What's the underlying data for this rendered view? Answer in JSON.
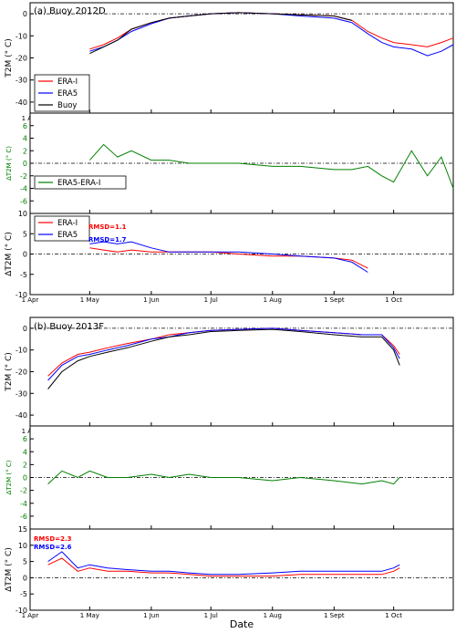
{
  "x_axis": {
    "xlabel": "Date",
    "tick_labels": [
      "1 Apr",
      "1 May",
      "1 Jun",
      "1 Jul",
      "1 Aug",
      "1 Sept",
      "1 Oct"
    ],
    "tick_dates": [
      "2012-04-01",
      "2012-05-01",
      "2012-06-01",
      "2012-07-01",
      "2012-08-01",
      "2012-09-01",
      "2012-10-01"
    ],
    "xlim": [
      "2012-04-01",
      "2012-10-31"
    ]
  },
  "colors": {
    "era_i": "#ff0000",
    "era5": "#0000ff",
    "buoy": "#000000",
    "diff": "#008000",
    "diff_axis_text": "#008000"
  },
  "chart_data": [
    {
      "id": "a1",
      "type": "line",
      "panel_label": "(a) Buoy 2012D",
      "ylabel": "T2M (° C)",
      "ylim": [
        -45,
        5
      ],
      "yticks": [
        0,
        -10,
        -20,
        -30,
        -40
      ],
      "reference_line": 0,
      "legend": {
        "placement": "lower-left",
        "entries": [
          "ERA-I",
          "ERA5",
          "Buoy"
        ]
      },
      "x": [
        "2012-05-01",
        "2012-05-08",
        "2012-05-15",
        "2012-05-22",
        "2012-06-01",
        "2012-06-10",
        "2012-06-20",
        "2012-07-01",
        "2012-07-15",
        "2012-08-01",
        "2012-08-15",
        "2012-09-01",
        "2012-09-10",
        "2012-09-18",
        "2012-09-25",
        "2012-10-01",
        "2012-10-10",
        "2012-10-18",
        "2012-10-25",
        "2012-10-31"
      ],
      "series": [
        {
          "name": "ERA-I",
          "values": [
            -16,
            -14,
            -11,
            -7,
            -4,
            -2,
            -1,
            0,
            0.5,
            0,
            -0.5,
            -1,
            -3,
            -8,
            -11,
            -13,
            -14,
            -15,
            -13,
            -11
          ]
        },
        {
          "name": "ERA5",
          "values": [
            -17,
            -15,
            -12,
            -8,
            -4.5,
            -2,
            -1,
            0,
            0.5,
            0,
            -1,
            -2,
            -4,
            -9,
            -13,
            -15,
            -16,
            -19,
            -17,
            -14
          ]
        },
        {
          "name": "Buoy",
          "values": [
            -18,
            -15,
            -12,
            -7,
            -4,
            -2,
            -1,
            0,
            0.5,
            0,
            -0.5,
            -1,
            -3,
            null,
            null,
            null,
            null,
            null,
            null,
            null
          ]
        }
      ]
    },
    {
      "id": "a2",
      "type": "line",
      "ylabel": "ΔT2M (° C)",
      "ylim": [
        -8,
        8
      ],
      "yticks": [
        6,
        4,
        2,
        0,
        -2,
        -4,
        -6
      ],
      "reference_line": 0,
      "legend": {
        "placement": "lower-left",
        "entries": [
          "ERA5-ERA-I"
        ]
      },
      "x": [
        "2012-05-01",
        "2012-05-08",
        "2012-05-15",
        "2012-05-22",
        "2012-06-01",
        "2012-06-10",
        "2012-06-20",
        "2012-07-01",
        "2012-07-15",
        "2012-08-01",
        "2012-08-15",
        "2012-09-01",
        "2012-09-10",
        "2012-09-18",
        "2012-09-25",
        "2012-10-01",
        "2012-10-10",
        "2012-10-18",
        "2012-10-25",
        "2012-10-31"
      ],
      "series": [
        {
          "name": "ERA5-ERA-I",
          "values": [
            0.5,
            3,
            1,
            2,
            0.5,
            0.5,
            0,
            0,
            0,
            -0.5,
            -0.5,
            -1,
            -1,
            -0.5,
            -2,
            -3,
            2,
            -2,
            1,
            -4
          ]
        }
      ]
    },
    {
      "id": "a3",
      "type": "line",
      "ylabel": "ΔT2M (° C)",
      "ylim": [
        -10,
        10
      ],
      "yticks": [
        10,
        5,
        0,
        -5,
        -10
      ],
      "reference_line": 0,
      "legend": {
        "placement": "top-left",
        "entries": [
          "ERA-I",
          "ERA5"
        ]
      },
      "annotations": [
        {
          "text": "RMSD=1.1",
          "color": "#ff0000"
        },
        {
          "text": "RMSD=1.7",
          "color": "#0000ff"
        }
      ],
      "x": [
        "2012-05-01",
        "2012-05-08",
        "2012-05-15",
        "2012-05-22",
        "2012-06-01",
        "2012-06-10",
        "2012-06-20",
        "2012-07-01",
        "2012-07-15",
        "2012-08-01",
        "2012-08-15",
        "2012-09-01",
        "2012-09-10",
        "2012-09-18"
      ],
      "series": [
        {
          "name": "ERA-I",
          "values": [
            1.5,
            1,
            0.5,
            1,
            0.5,
            0.5,
            0.5,
            0.5,
            0,
            -0.5,
            -0.5,
            -1,
            -1.5,
            -3.5
          ]
        },
        {
          "name": "ERA5",
          "values": [
            2.5,
            3,
            2.5,
            3,
            1.5,
            0.5,
            0.5,
            0.5,
            0.5,
            0,
            -0.5,
            -1,
            -2,
            -4.5
          ]
        }
      ]
    },
    {
      "id": "b1",
      "type": "line",
      "panel_label": "(b) Buoy 2013F",
      "ylabel": "T2M (° C)",
      "ylim": [
        -45,
        5
      ],
      "yticks": [
        0,
        -10,
        -20,
        -30,
        -40
      ],
      "reference_line": 0,
      "x": [
        "2012-04-10",
        "2012-04-17",
        "2012-04-25",
        "2012-05-01",
        "2012-05-10",
        "2012-05-20",
        "2012-06-01",
        "2012-06-10",
        "2012-06-20",
        "2012-07-01",
        "2012-07-15",
        "2012-08-01",
        "2012-08-15",
        "2012-09-01",
        "2012-09-15",
        "2012-09-25",
        "2012-10-01",
        "2012-10-04"
      ],
      "series": [
        {
          "name": "ERA-I",
          "values": [
            -22,
            -16,
            -12,
            -11,
            -9,
            -7,
            -5,
            -3,
            -2,
            -1,
            -0.5,
            0,
            -1,
            -2,
            -3,
            -3,
            -8,
            -12
          ]
        },
        {
          "name": "ERA5",
          "values": [
            -24,
            -17,
            -13,
            -12,
            -10,
            -8,
            -5,
            -4,
            -2,
            -1,
            -0.5,
            0,
            -1,
            -2,
            -3,
            -3,
            -9,
            -14
          ]
        },
        {
          "name": "Buoy",
          "values": [
            -28,
            -20,
            -15,
            -13,
            -11,
            -9,
            -6,
            -4,
            -3,
            -1.5,
            -1,
            -0.5,
            -1.5,
            -3,
            -4,
            -4,
            -10,
            -17
          ]
        }
      ]
    },
    {
      "id": "b2",
      "type": "line",
      "ylabel": "ΔT2M (° C)",
      "ylim": [
        -8,
        8
      ],
      "yticks": [
        6,
        4,
        2,
        0,
        -2,
        -4,
        -6
      ],
      "reference_line": 0,
      "x": [
        "2012-04-10",
        "2012-04-17",
        "2012-04-25",
        "2012-05-01",
        "2012-05-10",
        "2012-05-20",
        "2012-06-01",
        "2012-06-10",
        "2012-06-20",
        "2012-07-01",
        "2012-07-15",
        "2012-08-01",
        "2012-08-15",
        "2012-09-01",
        "2012-09-15",
        "2012-09-25",
        "2012-10-01",
        "2012-10-04"
      ],
      "series": [
        {
          "name": "ERA5-ERA-I",
          "values": [
            -1,
            1,
            0,
            1,
            0,
            0,
            0.5,
            0,
            0.5,
            0,
            0,
            -0.5,
            0,
            -0.5,
            -1,
            -0.5,
            -1,
            0
          ]
        }
      ]
    },
    {
      "id": "b3",
      "type": "line",
      "ylabel": "ΔT2M (° C)",
      "ylim": [
        -10,
        15
      ],
      "yticks": [
        15,
        10,
        5,
        0,
        -5,
        -10
      ],
      "reference_line": 0,
      "annotations": [
        {
          "text": "RMSD=2.3",
          "color": "#ff0000"
        },
        {
          "text": "RMSD=2.6",
          "color": "#0000ff"
        }
      ],
      "x": [
        "2012-04-10",
        "2012-04-17",
        "2012-04-25",
        "2012-05-01",
        "2012-05-10",
        "2012-05-20",
        "2012-06-01",
        "2012-06-10",
        "2012-06-20",
        "2012-07-01",
        "2012-07-15",
        "2012-08-01",
        "2012-08-15",
        "2012-09-01",
        "2012-09-15",
        "2012-09-25",
        "2012-10-01",
        "2012-10-04"
      ],
      "series": [
        {
          "name": "ERA-I",
          "values": [
            4,
            6,
            2,
            3,
            2,
            2,
            1.5,
            1.5,
            1,
            0.5,
            0.5,
            0.5,
            1,
            1,
            1,
            1,
            2,
            3
          ]
        },
        {
          "name": "ERA5",
          "values": [
            5,
            8,
            3,
            4,
            3,
            2.5,
            2,
            2,
            1.5,
            1,
            1,
            1.5,
            2,
            2,
            2,
            2,
            3,
            4
          ]
        }
      ]
    }
  ]
}
